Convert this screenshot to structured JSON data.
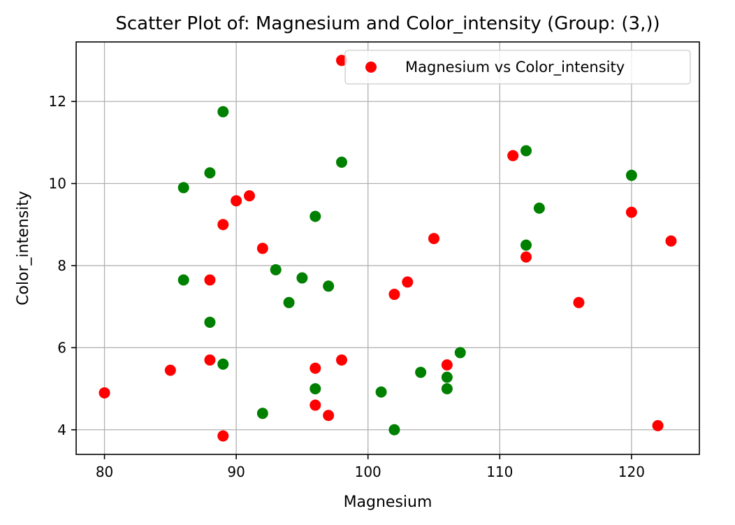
{
  "chart_data": {
    "type": "scatter",
    "title": "Scatter Plot of: Magnesium and Color_intensity (Group: (3,))",
    "xlabel": "Magnesium",
    "ylabel": "Color_intensity",
    "xlim": [
      77.85,
      125.15
    ],
    "ylim": [
      3.4,
      13.45
    ],
    "xticks": [
      80,
      90,
      100,
      110,
      120
    ],
    "yticks": [
      4,
      6,
      8,
      10,
      12
    ],
    "grid": true,
    "legend": {
      "entries": [
        "Magnesium vs Color_intensity"
      ],
      "placement": "upper-right"
    },
    "colors": {
      "red": "#ff0000",
      "green": "#008000"
    },
    "series": [
      {
        "name": "Magnesium vs Color_intensity",
        "color": "#ff0000",
        "points": [
          [
            98,
            13.0
          ],
          [
            111,
            10.68
          ],
          [
            91,
            9.7
          ],
          [
            90,
            9.58
          ],
          [
            120,
            9.3
          ],
          [
            89,
            9.0
          ],
          [
            105,
            8.66
          ],
          [
            123,
            8.6
          ],
          [
            92,
            8.42
          ],
          [
            112,
            8.21
          ],
          [
            88,
            7.65
          ],
          [
            103,
            7.6
          ],
          [
            102,
            7.3
          ],
          [
            116,
            7.1
          ],
          [
            88,
            5.7
          ],
          [
            98,
            5.7
          ],
          [
            106,
            5.58
          ],
          [
            96,
            5.5
          ],
          [
            85,
            5.45
          ],
          [
            80,
            4.9
          ],
          [
            96,
            4.6
          ],
          [
            97,
            4.35
          ],
          [
            122,
            4.1
          ],
          [
            89,
            3.85
          ]
        ]
      },
      {
        "name": "",
        "color": "#008000",
        "points": [
          [
            89,
            11.75
          ],
          [
            112,
            10.8
          ],
          [
            98,
            10.52
          ],
          [
            88,
            10.26
          ],
          [
            120,
            10.2
          ],
          [
            86,
            9.9
          ],
          [
            113,
            9.4
          ],
          [
            96,
            9.2
          ],
          [
            112,
            8.5
          ],
          [
            93,
            7.9
          ],
          [
            95,
            7.7
          ],
          [
            86,
            7.65
          ],
          [
            97,
            7.5
          ],
          [
            94,
            7.1
          ],
          [
            88,
            6.62
          ],
          [
            107,
            5.88
          ],
          [
            89,
            5.6
          ],
          [
            104,
            5.4
          ],
          [
            106,
            5.28
          ],
          [
            96,
            5.0
          ],
          [
            106,
            5.0
          ],
          [
            101,
            4.92
          ],
          [
            92,
            4.4
          ],
          [
            102,
            4.0
          ]
        ]
      }
    ]
  }
}
